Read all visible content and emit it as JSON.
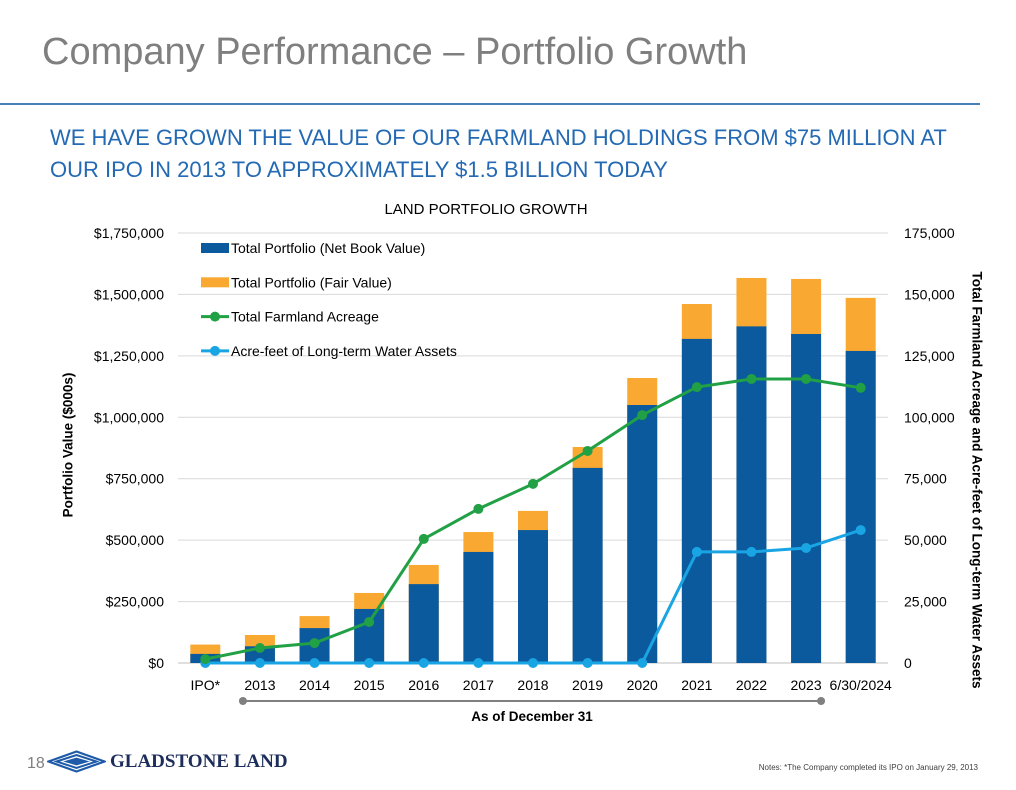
{
  "slide": {
    "title": "Company Performance – Portfolio Growth",
    "headline": [
      "WE HAVE GROWN THE VALUE OF OUR FARMLAND HOLDINGS FROM $75 MILLION AT",
      "OUR IPO IN 2013 TO APPROXIMATELY $1.5 BILLION TODAY"
    ],
    "page_number": "18",
    "brand": "GLADSTONE LAND",
    "logo_icon": "gladstone-diamond-logo",
    "notes": "Notes: *The Company completed its IPO on January 29, 2013"
  },
  "colors": {
    "title": "#7f7f7f",
    "headline": "#2369b3",
    "divider": "#4a80b4",
    "brand": "#1c2d5a",
    "logo": "#1e5aa8"
  },
  "chart_data": {
    "type": "bar",
    "title": "LAND PORTFOLIO GROWTH",
    "categories": [
      "IPO*",
      "2013",
      "2014",
      "2015",
      "2016",
      "2017",
      "2018",
      "2019",
      "2020",
      "2021",
      "2022",
      "2023",
      "6/30/2024"
    ],
    "xlabel": "As of December 31",
    "xlabel_span": [
      "2013",
      "2023"
    ],
    "ylabel": "Portfolio Value ($000s)",
    "y2label": "Total Farmland Acreage and Acre-feet of Long-term Water Assets",
    "ylim": [
      0,
      1750000
    ],
    "y2lim": [
      0,
      175000
    ],
    "yticks": [
      0,
      250000,
      500000,
      750000,
      1000000,
      1250000,
      1500000,
      1750000
    ],
    "ytick_labels": [
      "$0",
      "$250,000",
      "$500,000",
      "$750,000",
      "$1,000,000",
      "$1,250,000",
      "$1,500,000",
      "$1,750,000"
    ],
    "y2ticks": [
      0,
      25000,
      50000,
      75000,
      100000,
      125000,
      150000,
      175000
    ],
    "y2tick_labels": [
      "0",
      "25,000",
      "50,000",
      "75,000",
      "100,000",
      "125,000",
      "150,000",
      "175,000"
    ],
    "grid": true,
    "legend_position": "top-left",
    "series": [
      {
        "name": "Total Portfolio (Net Book Value)",
        "type": "bar",
        "axis": "left",
        "color": "#0b5a9e",
        "values": [
          37000,
          68000,
          142000,
          220000,
          321000,
          452000,
          541000,
          794000,
          1050000,
          1319000,
          1370000,
          1339000,
          1270000
        ]
      },
      {
        "name": "Total Portfolio (Fair Value)",
        "type": "bar",
        "axis": "left",
        "color": "#f9a932",
        "values": [
          75000,
          114000,
          191000,
          285000,
          399000,
          533000,
          619000,
          879000,
          1160000,
          1461000,
          1567000,
          1563000,
          1486000
        ]
      },
      {
        "name": "Total Farmland Acreage",
        "type": "line",
        "axis": "right",
        "color": "#21a045",
        "values": [
          1600,
          6100,
          8100,
          16700,
          50500,
          62700,
          72900,
          86300,
          100900,
          112300,
          115600,
          115600,
          112000
        ]
      },
      {
        "name": "Acre-feet of Long-term Water Assets",
        "type": "line",
        "axis": "right",
        "color": "#19a5e4",
        "values": [
          0,
          0,
          0,
          0,
          0,
          0,
          0,
          0,
          0,
          45200,
          45200,
          46800,
          54100
        ]
      }
    ]
  }
}
